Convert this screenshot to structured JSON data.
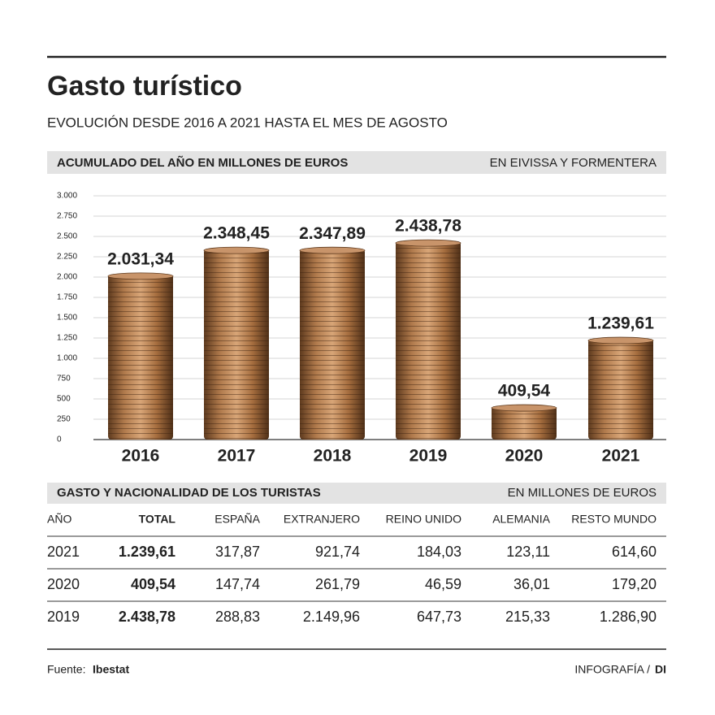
{
  "header": {
    "title": "Gasto turístico",
    "subtitle": "EVOLUCIÓN DESDE 2016 A 2021 HASTA EL MES DE AGOSTO"
  },
  "chart_section": {
    "title": "ACUMULADO DEL AÑO EN MILLONES DE EUROS",
    "note": "EN EIVISSA Y FORMENTERA"
  },
  "chart_data": {
    "type": "bar",
    "categories": [
      "2016",
      "2017",
      "2018",
      "2019",
      "2020",
      "2021"
    ],
    "values": [
      2031.34,
      2348.45,
      2347.89,
      2438.78,
      409.54,
      1239.61
    ],
    "value_labels": [
      "2.031,34",
      "2.348,45",
      "2.347,89",
      "2.438,78",
      "409,54",
      "1.239,61"
    ],
    "color": "#a8703f",
    "ylim": [
      0,
      3000
    ],
    "yticks": [
      0,
      250,
      500,
      750,
      {
        "value": 1000,
        "label": "1.000"
      },
      {
        "value": 1250,
        "label": "1.250"
      },
      {
        "value": 1500,
        "label": "1.500"
      },
      {
        "value": 1750,
        "label": "1.750"
      },
      {
        "value": 2000,
        "label": "2.000"
      },
      {
        "value": 2250,
        "label": "2.250"
      },
      {
        "value": 2500,
        "label": "2.500"
      },
      {
        "value": 2750,
        "label": "2.750"
      },
      {
        "value": 3000,
        "label": "3.000"
      }
    ],
    "grid": true
  },
  "table_section": {
    "title": "GASTO Y NACIONALIDAD DE LOS TURISTAS",
    "note": "EN MILLONES DE EUROS"
  },
  "table": {
    "columns": [
      "AÑO",
      "TOTAL",
      "ESPAÑA",
      "EXTRANJERO",
      "REINO UNIDO",
      "ALEMANIA",
      "RESTO MUNDO"
    ],
    "rows": [
      [
        "2021",
        "1.239,61",
        "317,87",
        "921,74",
        "184,03",
        "123,11",
        "614,60"
      ],
      [
        "2020",
        "409,54",
        "147,74",
        "261,79",
        "46,59",
        "36,01",
        "179,20"
      ],
      [
        "2019",
        "2.438,78",
        "288,83",
        "2.149,96",
        "647,73",
        "215,33",
        "1.286,90"
      ]
    ]
  },
  "footer": {
    "source_label": "Fuente:",
    "source": "Ibestat",
    "credit_label": "INFOGRAFÍA /",
    "credit": "DI"
  }
}
